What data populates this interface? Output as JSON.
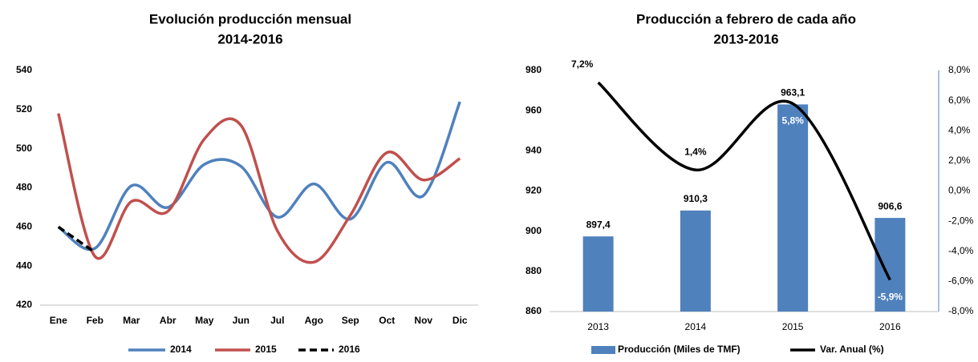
{
  "chart_data": [
    {
      "type": "line",
      "title": "Evolución producción mensual",
      "subtitle": "2014-2016",
      "categories": [
        "Ene",
        "Feb",
        "Mar",
        "Abr",
        "May",
        "Jun",
        "Jul",
        "Ago",
        "Sep",
        "Oct",
        "Nov",
        "Dic"
      ],
      "series": [
        {
          "name": "2014",
          "color": "#4f81bd",
          "style": "solid",
          "values": [
            460,
            449,
            481,
            470,
            492,
            491,
            465,
            482,
            464,
            493,
            476,
            524
          ]
        },
        {
          "name": "2015",
          "color": "#c0504d",
          "style": "solid",
          "values": [
            518,
            445,
            473,
            468,
            505,
            512,
            458,
            442,
            466,
            498,
            484,
            495
          ]
        },
        {
          "name": "2016",
          "color": "#000000",
          "style": "dashed",
          "values": [
            460,
            447,
            null,
            null,
            null,
            null,
            null,
            null,
            null,
            null,
            null,
            null
          ]
        }
      ],
      "ylim": [
        420,
        540
      ],
      "yticks": [
        420,
        440,
        460,
        480,
        500,
        520,
        540
      ],
      "grid": false,
      "legend": "bottom"
    },
    {
      "type": "bar-line",
      "title": "Producción a febrero de cada año",
      "subtitle": "2013-2016",
      "categories": [
        "2013",
        "2014",
        "2015",
        "2016"
      ],
      "series": [
        {
          "name": "Producción (Miles de TMF)",
          "color": "#4f81bd",
          "type": "bar",
          "values": [
            897.4,
            910.3,
            963.1,
            906.6
          ],
          "value_labels": [
            "897,4",
            "910,3",
            "963,1",
            "906,6"
          ]
        },
        {
          "name": "Var. Anual (%)",
          "color": "#000000",
          "type": "line",
          "axis": "y2",
          "values": [
            7.2,
            1.4,
            5.8,
            -5.9
          ],
          "value_labels": [
            "7,2%",
            "1,4%",
            "5,8%",
            "-5,9%"
          ]
        }
      ],
      "ylim": [
        860,
        980
      ],
      "yticks": [
        860,
        880,
        900,
        920,
        940,
        960,
        980
      ],
      "y2lim": [
        -8,
        8
      ],
      "y2ticks": [
        {
          "value": -8,
          "label": "-8,0%"
        },
        {
          "value": -6,
          "label": "-6,0%"
        },
        {
          "value": -4,
          "label": "-4,0%"
        },
        {
          "value": -2,
          "label": "-2,0%"
        },
        {
          "value": 0,
          "label": "0,0%"
        },
        {
          "value": 2,
          "label": "2,0%"
        },
        {
          "value": 4,
          "label": "4,0%"
        },
        {
          "value": 6,
          "label": "6,0%"
        },
        {
          "value": 8,
          "label": "8,0%"
        }
      ],
      "grid": false,
      "legend": "bottom"
    }
  ]
}
